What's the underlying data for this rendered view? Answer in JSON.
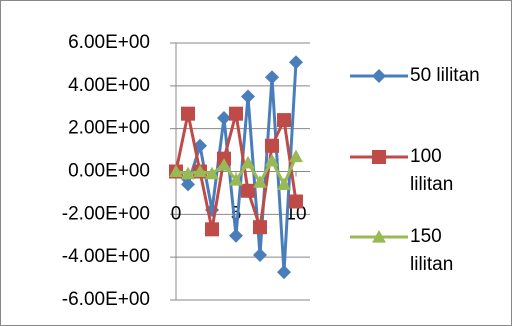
{
  "chart_data": {
    "type": "line",
    "x": [
      0,
      1,
      2,
      3,
      4,
      5,
      6,
      7,
      8,
      9,
      10
    ],
    "series": [
      {
        "name": "50 lilitan",
        "color": "#4a7ebb",
        "marker": "diamond",
        "values": [
          0,
          -0.6,
          1.2,
          -1.8,
          2.5,
          -3.0,
          3.5,
          -3.9,
          4.4,
          -4.7,
          5.1
        ]
      },
      {
        "name": "100 lilitan",
        "color": "#be4b48",
        "marker": "square",
        "values": [
          0,
          2.7,
          0,
          -2.7,
          0.6,
          2.7,
          -0.9,
          -2.6,
          1.2,
          2.4,
          -1.4
        ]
      },
      {
        "name": "150 lilitan",
        "color": "#98b954",
        "marker": "triangle",
        "values": [
          0,
          -0.1,
          0,
          -0.1,
          0.3,
          -0.4,
          0.4,
          -0.5,
          0.5,
          -0.6,
          0.7
        ]
      }
    ],
    "xlim": [
      0,
      10
    ],
    "xticks": [
      0,
      5,
      10
    ],
    "ylim": [
      -6,
      6
    ],
    "yticks": [
      {
        "value": -6,
        "label": "-6.00E+00"
      },
      {
        "value": -4,
        "label": "-4.00E+00"
      },
      {
        "value": -2,
        "label": "-2.00E+00"
      },
      {
        "value": 0,
        "label": "0.00E+00"
      },
      {
        "value": 2,
        "label": "2.00E+00"
      },
      {
        "value": 4,
        "label": "4.00E+00"
      },
      {
        "value": 6,
        "label": "6.00E+00"
      }
    ],
    "grid": true,
    "legend": "right"
  }
}
